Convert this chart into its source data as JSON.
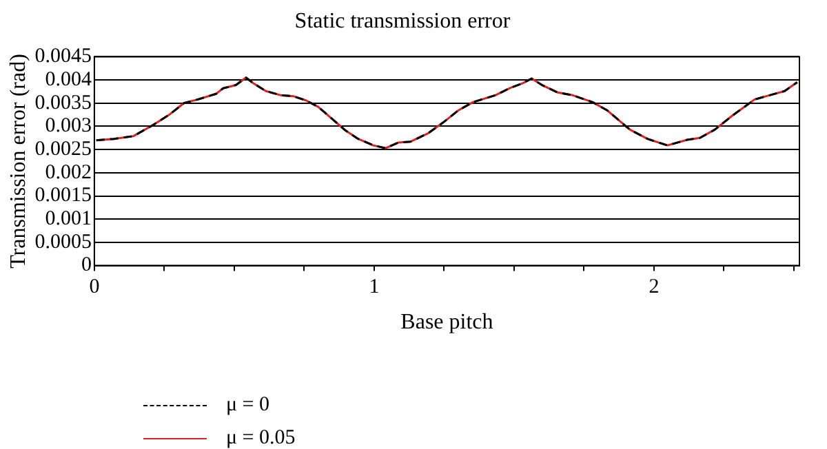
{
  "chart_data": {
    "type": "line",
    "title": "Static transmission error",
    "xlabel": "Base pitch",
    "ylabel": "Transmission error (rad)",
    "x": [
      0.007,
      0.07,
      0.14,
      0.21,
      0.27,
      0.32,
      0.37,
      0.435,
      0.46,
      0.506,
      0.542,
      0.568,
      0.613,
      0.667,
      0.711,
      0.756,
      0.8,
      0.854,
      0.898,
      0.943,
      0.997,
      1.041,
      1.086,
      1.13,
      1.193,
      1.246,
      1.3,
      1.353,
      1.433,
      1.487,
      1.531,
      1.563,
      1.603,
      1.656,
      1.71,
      1.781,
      1.834,
      1.914,
      1.977,
      2.048,
      2.119,
      2.164,
      2.218,
      2.28,
      2.36,
      2.413,
      2.467,
      2.512
    ],
    "series": [
      {
        "name": "μ = 0",
        "color": "#000000",
        "line_style": "dashed",
        "values": [
          0.0027,
          0.00273,
          0.00279,
          0.00303,
          0.00326,
          0.0035,
          0.00358,
          0.0037,
          0.00382,
          0.00389,
          0.00405,
          0.00393,
          0.00376,
          0.00367,
          0.00365,
          0.00356,
          0.00342,
          0.00314,
          0.00291,
          0.00273,
          0.00259,
          0.00253,
          0.00265,
          0.00267,
          0.00285,
          0.00308,
          0.00334,
          0.00352,
          0.00367,
          0.00383,
          0.00393,
          0.00403,
          0.00388,
          0.00373,
          0.00367,
          0.00352,
          0.00334,
          0.00293,
          0.00273,
          0.00259,
          0.00271,
          0.00275,
          0.00293,
          0.00323,
          0.00358,
          0.00367,
          0.00376,
          0.00395
        ]
      },
      {
        "name": "μ = 0.05",
        "color": "#d9231e",
        "line_style": "solid",
        "values": [
          0.0027,
          0.00273,
          0.00279,
          0.00303,
          0.00326,
          0.0035,
          0.00358,
          0.0037,
          0.00382,
          0.00389,
          0.00405,
          0.00393,
          0.00376,
          0.00367,
          0.00365,
          0.00356,
          0.00342,
          0.00314,
          0.00291,
          0.00273,
          0.00259,
          0.00253,
          0.00265,
          0.00267,
          0.00285,
          0.00308,
          0.00334,
          0.00352,
          0.00367,
          0.00383,
          0.00393,
          0.00403,
          0.00388,
          0.00373,
          0.00367,
          0.00352,
          0.00334,
          0.00293,
          0.00273,
          0.00259,
          0.00271,
          0.00275,
          0.00293,
          0.00323,
          0.00358,
          0.00367,
          0.00376,
          0.00395
        ]
      }
    ],
    "xlim": [
      0,
      2.52
    ],
    "xticks": [
      0,
      {
        "value": 0.25,
        "label": null
      },
      {
        "value": 0.5,
        "label": null
      },
      {
        "value": 0.75,
        "label": null
      },
      1,
      {
        "value": 1.25,
        "label": null
      },
      {
        "value": 1.5,
        "label": null
      },
      {
        "value": 1.75,
        "label": null
      },
      2,
      {
        "value": 2.25,
        "label": null
      },
      {
        "value": 2.5,
        "label": null
      }
    ],
    "ylim": [
      0,
      0.0045
    ],
    "yticks": [
      0,
      0.0005,
      0.001,
      0.0015,
      0.002,
      0.0025,
      0.003,
      0.0035,
      0.004,
      0.0045
    ],
    "grid": "y",
    "legend": "bottom left",
    "marker": "none"
  }
}
